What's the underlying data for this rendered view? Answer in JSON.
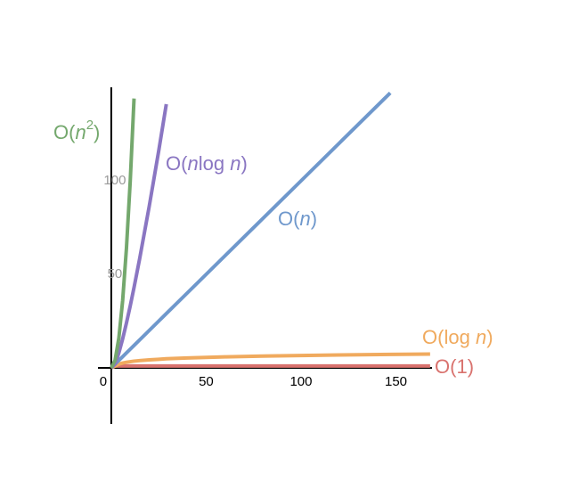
{
  "chart_data": {
    "type": "line",
    "x": [
      0,
      2,
      4,
      6,
      8,
      10,
      12,
      15,
      20,
      25,
      29,
      40,
      60,
      80,
      100,
      120,
      147,
      168
    ],
    "series": [
      {
        "name": "O(1)",
        "color": "#d9726e",
        "values": [
          1,
          1,
          1,
          1,
          1,
          1,
          1,
          1,
          1,
          1,
          1,
          1,
          1,
          1,
          1,
          1,
          1,
          1
        ]
      },
      {
        "name": "O(log n)",
        "color": "#f0aa5e",
        "values": [
          0,
          1,
          2,
          2.6,
          3,
          3.3,
          3.6,
          3.9,
          4.3,
          4.6,
          4.9,
          5.3,
          5.9,
          6.3,
          6.6,
          6.9,
          7.2,
          7.4
        ]
      },
      {
        "name": "O(n)",
        "color": "#6f98cc",
        "values": [
          0,
          2,
          4,
          6,
          8,
          10,
          12,
          15,
          20,
          25,
          29,
          40,
          60,
          80,
          100,
          120,
          147,
          null
        ]
      },
      {
        "name": "O(nlog n)",
        "color": "#8a76c2",
        "values": [
          0,
          2,
          8,
          15.5,
          24,
          33.2,
          43,
          58.6,
          86.4,
          116,
          141,
          null,
          null,
          null,
          null,
          null,
          null,
          null
        ]
      },
      {
        "name": "O(n2)",
        "color": "#74a86d",
        "values": [
          0,
          4,
          16,
          36,
          64,
          100,
          144,
          null,
          null,
          null,
          null,
          null,
          null,
          null,
          null,
          null,
          null,
          null
        ]
      }
    ],
    "xlim": [
      -7,
      169
    ],
    "ylim": [
      -30,
      150
    ],
    "xticks": [
      0,
      50,
      100,
      150
    ],
    "yticks": [
      50,
      100
    ]
  }
}
